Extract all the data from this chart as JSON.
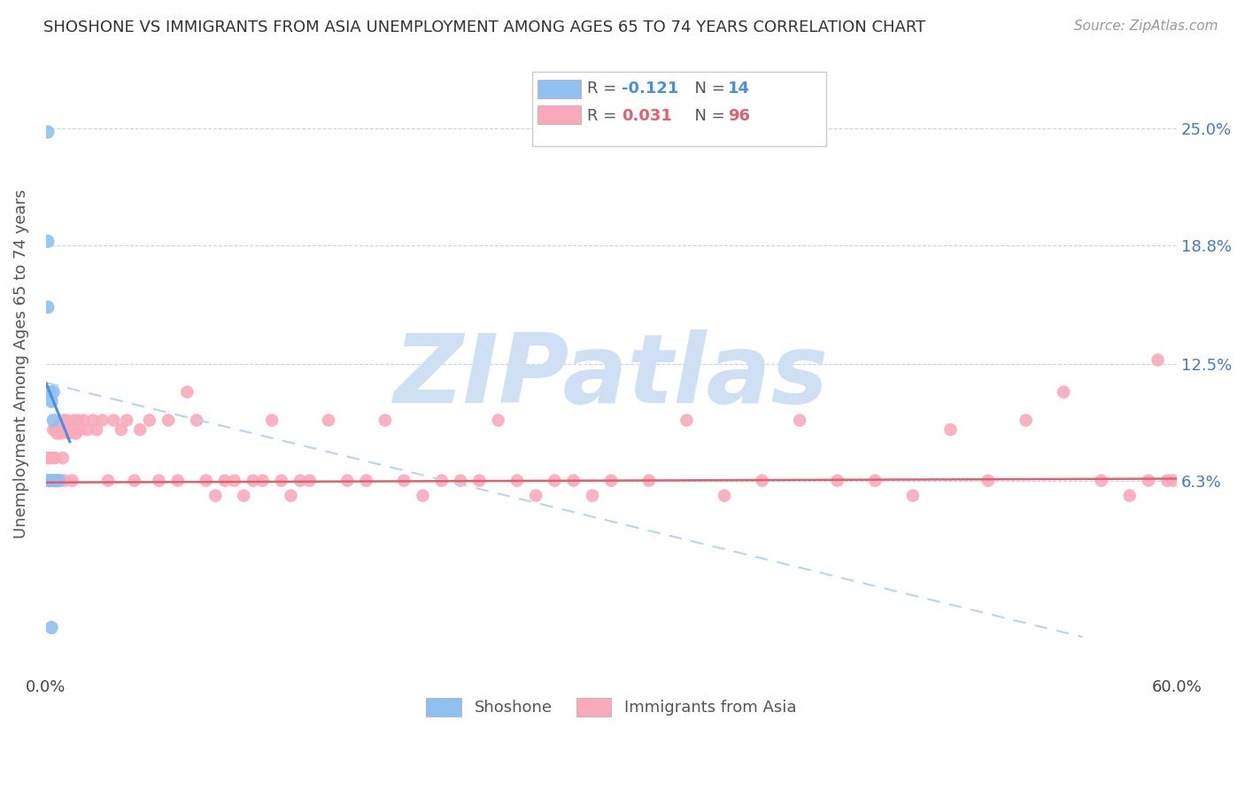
{
  "title": "SHOSHONE VS IMMIGRANTS FROM ASIA UNEMPLOYMENT AMONG AGES 65 TO 74 YEARS CORRELATION CHART",
  "source": "Source: ZipAtlas.com",
  "ylabel": "Unemployment Among Ages 65 to 74 years",
  "xlim": [
    0.0,
    0.6
  ],
  "ylim": [
    -0.04,
    0.29
  ],
  "yticks": [
    0.063,
    0.125,
    0.188,
    0.25
  ],
  "ytick_labels": [
    "6.3%",
    "12.5%",
    "18.8%",
    "25.0%"
  ],
  "xtick_positions": [
    0.0,
    0.1,
    0.2,
    0.3,
    0.4,
    0.5,
    0.6
  ],
  "xtick_labels": [
    "0.0%",
    "",
    "",
    "",
    "",
    "",
    "60.0%"
  ],
  "shoshone_color": "#90c0ef",
  "asia_color": "#f8aabc",
  "shoshone_line_color": "#4a90d9",
  "asia_line_color": "#e06070",
  "dash_line_color": "#b8d4f0",
  "watermark_color": "#d0e0f4",
  "shoshone_R": -0.121,
  "shoshone_N": 14,
  "asia_R": 0.031,
  "asia_N": 96,
  "watermark": "ZIPatlas",
  "shoshone_x": [
    0.001,
    0.001,
    0.001,
    0.002,
    0.002,
    0.003,
    0.004,
    0.004,
    0.005,
    0.005,
    0.006,
    0.007,
    0.003,
    0.002
  ],
  "shoshone_y": [
    0.248,
    0.19,
    0.155,
    0.11,
    0.063,
    0.105,
    0.095,
    0.11,
    0.063,
    0.063,
    0.063,
    0.063,
    -0.015,
    0.063
  ],
  "shoshone_trendline_x": [
    0.0,
    0.013
  ],
  "shoshone_trendline_y": [
    0.115,
    0.083
  ],
  "asia_trendline_x": [
    0.0,
    0.6
  ],
  "asia_trendline_y": [
    0.062,
    0.064
  ],
  "dash_trendline_x": [
    0.0,
    0.55
  ],
  "dash_trendline_y": [
    0.115,
    -0.02
  ],
  "asia_x": [
    0.001,
    0.001,
    0.001,
    0.002,
    0.002,
    0.002,
    0.003,
    0.003,
    0.003,
    0.004,
    0.004,
    0.004,
    0.005,
    0.005,
    0.005,
    0.006,
    0.006,
    0.007,
    0.007,
    0.008,
    0.008,
    0.009,
    0.009,
    0.01,
    0.01,
    0.011,
    0.012,
    0.013,
    0.014,
    0.015,
    0.016,
    0.017,
    0.018,
    0.02,
    0.022,
    0.025,
    0.027,
    0.03,
    0.033,
    0.036,
    0.04,
    0.043,
    0.047,
    0.05,
    0.055,
    0.06,
    0.065,
    0.07,
    0.075,
    0.08,
    0.085,
    0.09,
    0.095,
    0.1,
    0.105,
    0.11,
    0.115,
    0.12,
    0.125,
    0.13,
    0.135,
    0.14,
    0.15,
    0.16,
    0.17,
    0.18,
    0.19,
    0.2,
    0.21,
    0.22,
    0.23,
    0.24,
    0.25,
    0.26,
    0.27,
    0.28,
    0.29,
    0.3,
    0.32,
    0.34,
    0.36,
    0.38,
    0.4,
    0.42,
    0.44,
    0.46,
    0.48,
    0.5,
    0.52,
    0.54,
    0.56,
    0.575,
    0.585,
    0.59,
    0.595,
    0.598
  ],
  "asia_y": [
    0.063,
    0.063,
    0.075,
    0.063,
    0.063,
    0.075,
    0.063,
    0.063,
    0.063,
    0.063,
    0.075,
    0.09,
    0.063,
    0.075,
    0.09,
    0.063,
    0.088,
    0.063,
    0.092,
    0.063,
    0.088,
    0.075,
    0.095,
    0.063,
    0.09,
    0.095,
    0.088,
    0.092,
    0.063,
    0.095,
    0.088,
    0.095,
    0.09,
    0.095,
    0.09,
    0.095,
    0.09,
    0.095,
    0.063,
    0.095,
    0.09,
    0.095,
    0.063,
    0.09,
    0.095,
    0.063,
    0.095,
    0.063,
    0.11,
    0.095,
    0.063,
    0.055,
    0.063,
    0.063,
    0.055,
    0.063,
    0.063,
    0.095,
    0.063,
    0.055,
    0.063,
    0.063,
    0.095,
    0.063,
    0.063,
    0.095,
    0.063,
    0.055,
    0.063,
    0.063,
    0.063,
    0.095,
    0.063,
    0.055,
    0.063,
    0.063,
    0.055,
    0.063,
    0.063,
    0.095,
    0.055,
    0.063,
    0.095,
    0.063,
    0.063,
    0.055,
    0.09,
    0.063,
    0.095,
    0.11,
    0.063,
    0.055,
    0.063,
    0.127,
    0.063,
    0.063
  ]
}
